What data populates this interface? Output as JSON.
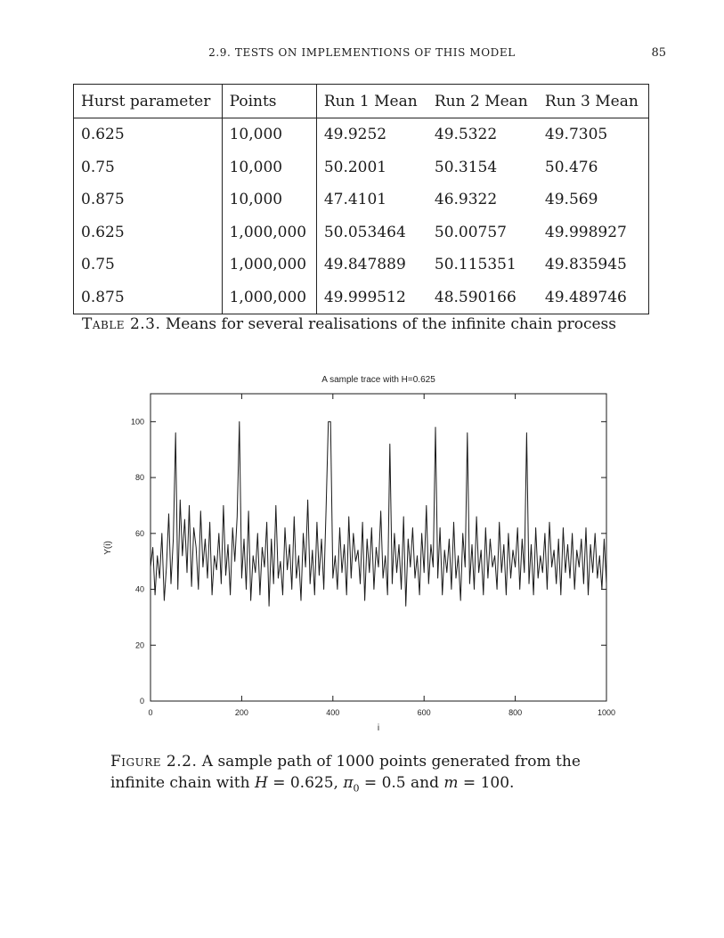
{
  "header": {
    "running_title": "2.9. TESTS ON IMPLEMENTIONS OF THIS MODEL",
    "page_number": "85"
  },
  "table": {
    "headers": [
      "Hurst parameter",
      "Points",
      "Run 1 Mean",
      "Run 2 Mean",
      "Run 3 Mean"
    ],
    "rows": [
      [
        "0.625",
        "10,000",
        "49.9252",
        "49.5322",
        "49.7305"
      ],
      [
        "0.75",
        "10,000",
        "50.2001",
        "50.3154",
        "50.476"
      ],
      [
        "0.875",
        "10,000",
        "47.4101",
        "46.9322",
        "49.569"
      ],
      [
        "0.625",
        "1,000,000",
        "50.053464",
        "50.00757",
        "49.998927"
      ],
      [
        "0.75",
        "1,000,000",
        "49.847889",
        "50.115351",
        "49.835945"
      ],
      [
        "0.875",
        "1,000,000",
        "49.999512",
        "48.590166",
        "49.489746"
      ]
    ],
    "caption_label": "Table 2.3.",
    "caption_text": "Means for several realisations of the infinite chain process"
  },
  "figure": {
    "caption_label": "Figure 2.2.",
    "caption_line1": "A sample path of 1000 points generated from the",
    "caption_line2_prefix": "infinite chain with ",
    "caption_h_var": "H",
    "caption_h_val": " = 0.625, ",
    "caption_pi_var": "π",
    "caption_pi_sub": "0",
    "caption_pi_val": " = 0.5 and ",
    "caption_m_var": "m",
    "caption_m_val": " = 100."
  },
  "chart_data": {
    "type": "line",
    "title": "A sample trace with H=0.625",
    "xlabel": "i",
    "ylabel": "Y(i)",
    "xlim": [
      0,
      1000
    ],
    "ylim": [
      0,
      110
    ],
    "xticks": [
      0,
      200,
      400,
      600,
      800,
      1000
    ],
    "yticks": [
      0,
      20,
      40,
      60,
      80,
      100
    ],
    "line_color": "#1a1a1a",
    "series": [
      {
        "x": [
          0,
          5,
          10,
          15,
          20,
          25,
          30,
          35,
          40,
          45,
          50,
          55,
          60,
          65,
          70,
          75,
          80,
          85,
          90,
          95,
          100,
          105,
          110,
          115,
          120,
          125,
          130,
          135,
          140,
          145,
          150,
          155,
          160,
          165,
          170,
          175,
          180,
          185,
          190,
          195,
          200,
          205,
          210,
          215,
          220,
          225,
          230,
          235,
          240,
          245,
          250,
          255,
          260,
          265,
          270,
          275,
          280,
          285,
          290,
          295,
          300,
          305,
          310,
          315,
          320,
          325,
          330,
          335,
          340,
          345,
          350,
          355,
          360,
          365,
          370,
          375,
          380,
          385,
          390,
          395,
          400,
          405,
          410,
          415,
          420,
          425,
          430,
          435,
          440,
          445,
          450,
          455,
          460,
          465,
          470,
          475,
          480,
          485,
          490,
          495,
          500,
          505,
          510,
          515,
          520,
          525,
          530,
          535,
          540,
          545,
          550,
          555,
          560,
          565,
          570,
          575,
          580,
          585,
          590,
          595,
          600,
          605,
          610,
          615,
          620,
          625,
          630,
          635,
          640,
          645,
          650,
          655,
          660,
          665,
          670,
          675,
          680,
          685,
          690,
          695,
          700,
          705,
          710,
          715,
          720,
          725,
          730,
          735,
          740,
          745,
          750,
          755,
          760,
          765,
          770,
          775,
          780,
          785,
          790,
          795,
          800,
          805,
          810,
          815,
          820,
          825,
          830,
          835,
          840,
          845,
          850,
          855,
          860,
          865,
          870,
          875,
          880,
          885,
          890,
          895,
          900,
          905,
          910,
          915,
          920,
          925,
          930,
          935,
          940,
          945,
          950,
          955,
          960,
          965,
          970,
          975,
          980,
          985,
          990,
          995,
          1000
        ],
        "values": [
          48,
          55,
          38,
          52,
          44,
          60,
          36,
          48,
          67,
          42,
          58,
          96,
          40,
          72,
          52,
          65,
          46,
          70,
          41,
          62,
          55,
          40,
          68,
          48,
          58,
          44,
          64,
          38,
          52,
          47,
          60,
          42,
          70,
          45,
          56,
          38,
          62,
          50,
          66,
          100,
          44,
          58,
          40,
          68,
          36,
          52,
          46,
          60,
          38,
          55,
          48,
          64,
          34,
          58,
          42,
          70,
          44,
          50,
          38,
          62,
          47,
          56,
          40,
          66,
          44,
          52,
          36,
          60,
          48,
          72,
          42,
          54,
          38,
          64,
          45,
          58,
          40,
          68,
          100,
          100,
          44,
          52,
          40,
          62,
          46,
          56,
          38,
          66,
          44,
          60,
          50,
          54,
          42,
          64,
          36,
          58,
          46,
          62,
          40,
          55,
          48,
          68,
          44,
          52,
          38,
          92,
          42,
          60,
          46,
          56,
          40,
          66,
          34,
          58,
          48,
          62,
          44,
          52,
          38,
          60,
          46,
          70,
          42,
          56,
          48,
          98,
          44,
          62,
          38,
          54,
          46,
          58,
          40,
          64,
          44,
          52,
          36,
          60,
          48,
          96,
          42,
          56,
          40,
          66,
          46,
          54,
          38,
          62,
          44,
          58,
          48,
          52,
          40,
          64,
          46,
          56,
          38,
          60,
          44,
          54,
          48,
          62,
          40,
          58,
          46,
          96,
          42,
          56,
          38,
          62,
          44,
          52,
          46,
          60,
          40,
          64,
          48,
          54,
          42,
          58,
          38,
          62,
          46,
          56,
          44,
          60,
          40,
          54,
          48,
          58,
          42,
          62,
          38,
          56,
          46,
          60,
          44,
          52,
          40,
          58,
          42
        ]
      }
    ]
  }
}
